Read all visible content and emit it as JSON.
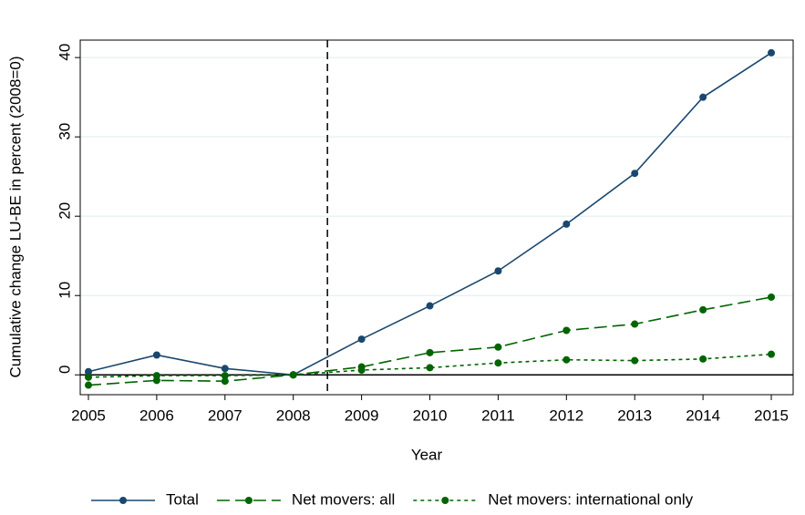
{
  "chart_data": {
    "type": "line",
    "x_label": "Year",
    "y_label": "Cumulative change LU-BE in percent (2008=0)",
    "x": [
      2005,
      2006,
      2007,
      2008,
      2009,
      2010,
      2011,
      2012,
      2013,
      2014,
      2015
    ],
    "series": [
      {
        "name": "Total",
        "color": "#1a476f",
        "dash": "solid",
        "values": [
          0.4,
          2.5,
          0.8,
          0,
          4.5,
          8.7,
          13.1,
          19.0,
          25.4,
          35.0,
          40.6
        ]
      },
      {
        "name": "Net movers: all",
        "color": "#006400",
        "dash": "long",
        "values": [
          -1.3,
          -0.7,
          -0.8,
          0,
          1.0,
          2.8,
          3.5,
          5.6,
          6.4,
          8.2,
          9.8
        ]
      },
      {
        "name": "Net movers: international only",
        "color": "#006400",
        "dash": "short",
        "values": [
          -0.3,
          -0.1,
          -0.1,
          0,
          0.6,
          0.9,
          1.5,
          1.9,
          1.8,
          2.0,
          2.6
        ]
      }
    ],
    "xlim": [
      2004.88,
      2015.32
    ],
    "ylim": [
      -2.5,
      42.2
    ],
    "xticks": [
      2005,
      2006,
      2007,
      2008,
      2009,
      2010,
      2011,
      2012,
      2013,
      2014,
      2015
    ],
    "yticks": [
      0,
      10,
      20,
      30,
      40
    ],
    "grid": true,
    "vline": 2008.5,
    "hline": 0,
    "legend": "bottom"
  }
}
